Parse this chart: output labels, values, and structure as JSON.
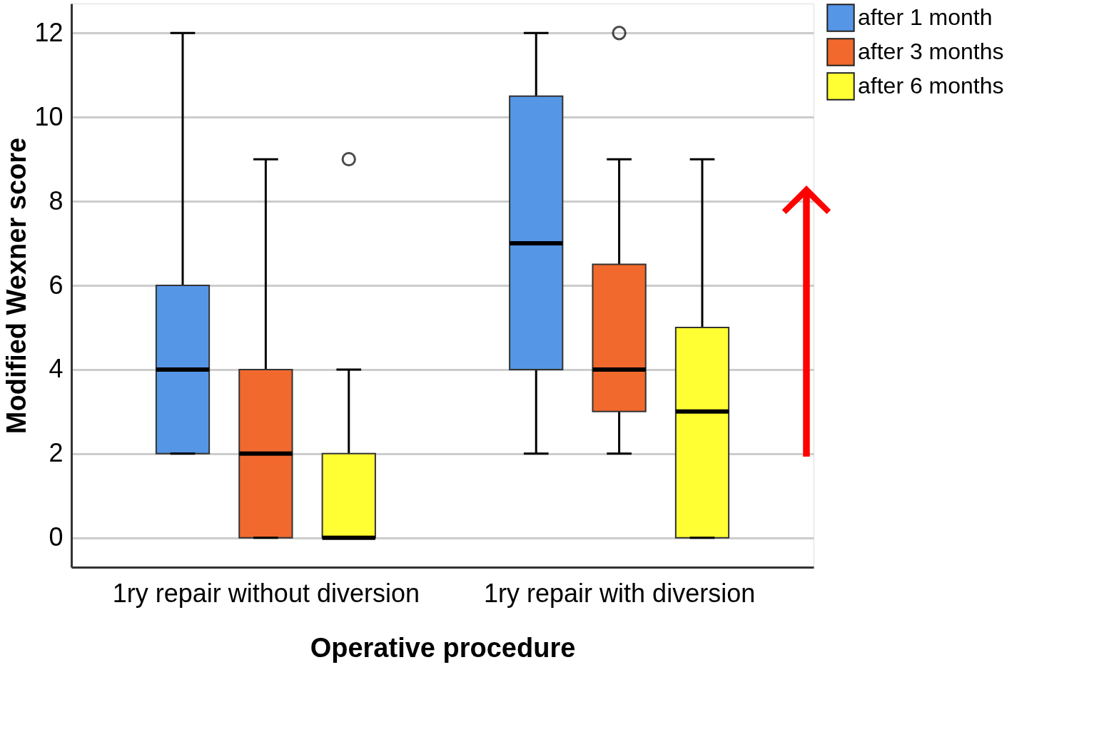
{
  "chart_data": {
    "type": "box",
    "xlabel": "Operative procedure",
    "ylabel": "Modified Wexner score",
    "categories": [
      "1ry repair without diversion",
      "1ry repair with diversion"
    ],
    "ylim": [
      -0.7,
      12.7
    ],
    "yticks": [
      0,
      2,
      4,
      6,
      8,
      10,
      12
    ],
    "grid": "y",
    "legend": "top right",
    "series": [
      {
        "name": "after 1 month",
        "color": "#5596e6",
        "boxes": [
          {
            "low": 2,
            "q1": 2,
            "median": 4,
            "q3": 6,
            "high": 12
          },
          {
            "low": 2,
            "q1": 4,
            "median": 7,
            "q3": 10.5,
            "high": 12
          }
        ]
      },
      {
        "name": "after 3 months",
        "color": "#f2692e",
        "boxes": [
          {
            "low": 0,
            "q1": 0,
            "median": 2,
            "q3": 4,
            "high": 9
          },
          {
            "low": 2,
            "q1": 3,
            "median": 4,
            "q3": 6.5,
            "high": 9,
            "outliers": [
              12
            ]
          }
        ]
      },
      {
        "name": "after 6 months",
        "color": "#ffff33",
        "boxes": [
          {
            "low": 0,
            "q1": 0,
            "median": 0,
            "q3": 2,
            "high": 4,
            "outliers": [
              9
            ]
          },
          {
            "low": 0,
            "q1": 0,
            "median": 3,
            "q3": 5,
            "high": 9
          }
        ]
      }
    ]
  }
}
